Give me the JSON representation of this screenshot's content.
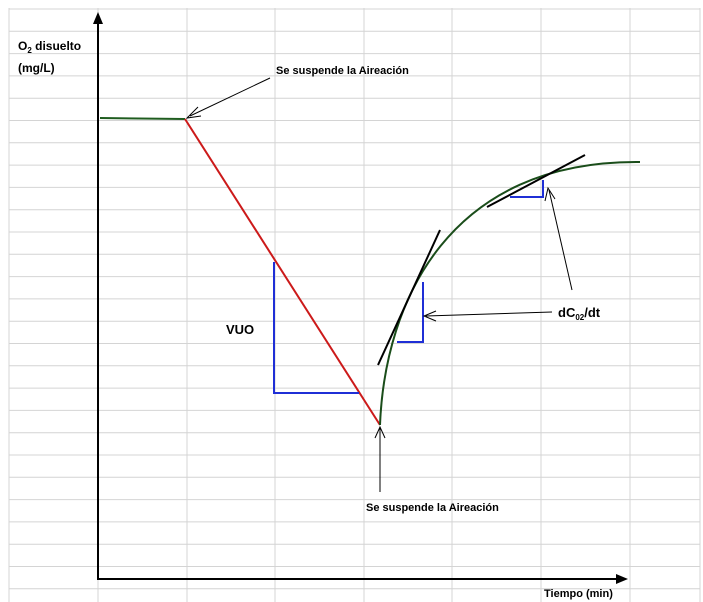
{
  "labels": {
    "y_axis_line1": "O",
    "y_axis_sub": "2",
    "y_axis_line1_rest": " disuelto",
    "y_axis_line2": "(mg/L)",
    "x_axis": "Tiempo (min)",
    "aeration_stop_top": "Se suspende la Aireación",
    "aeration_stop_bottom": "Se suspende la Aireación",
    "vuo": "VUO",
    "derivative_prefix": "dC",
    "derivative_sub": "02",
    "derivative_suffix": "/dt"
  },
  "colors": {
    "grid": "#d4d4d4",
    "axis": "#000000",
    "plateau": "#1f5c1f",
    "decline": "#cc1a1a",
    "recovery_curve": "#1a4d1a",
    "slope_triangle": "#1f2fd6",
    "tangent": "#000000"
  }
}
